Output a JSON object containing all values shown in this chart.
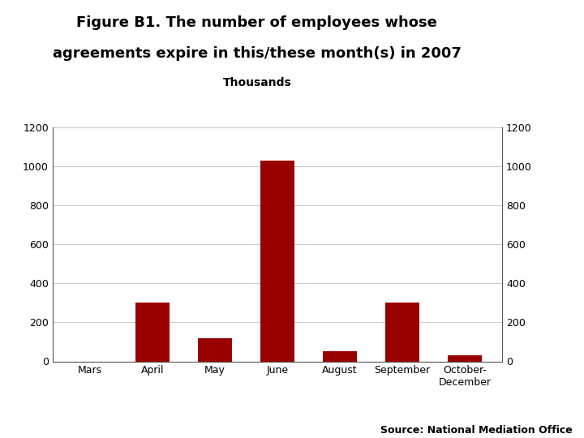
{
  "title_line1": "Figure B1. The number of employees whose",
  "title_line2": "agreements expire in this/these month(s) in 2007",
  "subtitle": "Thousands",
  "categories": [
    "Mars",
    "April",
    "May",
    "June",
    "August",
    "September",
    "October-\nDecember"
  ],
  "values": [
    0,
    300,
    120,
    1030,
    50,
    300,
    30
  ],
  "bar_color": "#990000",
  "ylim": [
    0,
    1200
  ],
  "yticks": [
    0,
    200,
    400,
    600,
    800,
    1000,
    1200
  ],
  "background_color": "#ffffff",
  "source_text": "Source: National Mediation Office",
  "footer_color": "#1c3a6e",
  "logo_color": "#1c3a6e",
  "title_fontsize": 13,
  "subtitle_fontsize": 10,
  "tick_fontsize": 9,
  "source_fontsize": 9
}
